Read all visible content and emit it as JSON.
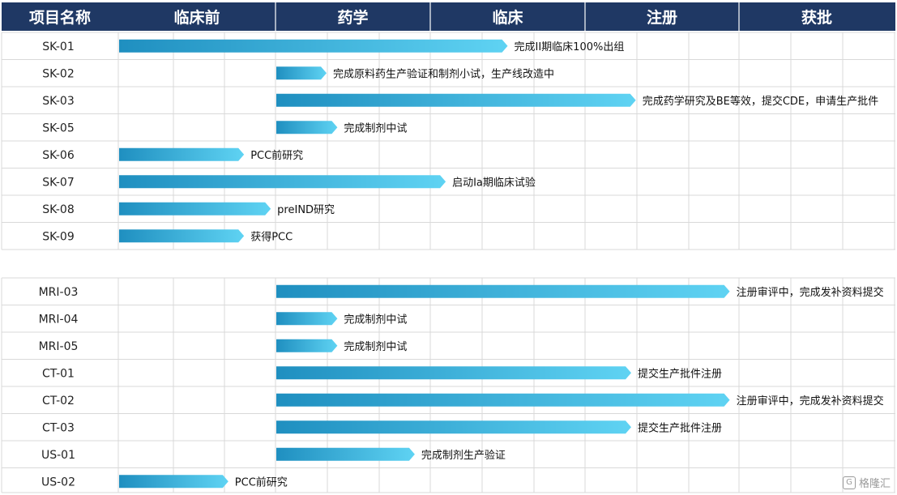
{
  "chart_data": {
    "type": "gantt",
    "header": {
      "label_column": "项目名称",
      "phases": [
        "临床前",
        "药学",
        "临床",
        "注册",
        "获批"
      ]
    },
    "groups": [
      {
        "rows": [
          {
            "name": "SK-01",
            "start_phase": 0,
            "end": 2.5,
            "note": "完成II期临床100%出组"
          },
          {
            "name": "SK-02",
            "start_phase": 1,
            "end": 1.33,
            "note": "完成原料药生产验证和制剂小试，生产线改造中"
          },
          {
            "name": "SK-03",
            "start_phase": 1,
            "end": 3.33,
            "note": "完成药学研究及BE等效，提交CDE，申请生产批件"
          },
          {
            "name": "SK-05",
            "start_phase": 1,
            "end": 1.4,
            "note": "完成制剂中试"
          },
          {
            "name": "SK-06",
            "start_phase": 0,
            "end": 0.8,
            "note": "PCC前研究"
          },
          {
            "name": "SK-07",
            "start_phase": 0,
            "end": 2.1,
            "note": "启动Ia期临床试验"
          },
          {
            "name": "SK-08",
            "start_phase": 0,
            "end": 0.97,
            "note": "preIND研究"
          },
          {
            "name": "SK-09",
            "start_phase": 0,
            "end": 0.8,
            "note": "获得PCC"
          }
        ]
      },
      {
        "rows": [
          {
            "name": "MRI-03",
            "start_phase": 1,
            "end": 3.94,
            "note": "注册审评中，完成发补资料提交"
          },
          {
            "name": "MRI-04",
            "start_phase": 1,
            "end": 1.4,
            "note": "完成制剂中试"
          },
          {
            "name": "MRI-05",
            "start_phase": 1,
            "end": 1.4,
            "note": "完成制剂中试"
          },
          {
            "name": "CT-01",
            "start_phase": 1,
            "end": 3.3,
            "note": "提交生产批件注册"
          },
          {
            "name": "CT-02",
            "start_phase": 1,
            "end": 3.94,
            "note": "注册审评中，完成发补资料提交"
          },
          {
            "name": "CT-03",
            "start_phase": 1,
            "end": 3.3,
            "note": "提交生产批件注册"
          },
          {
            "name": "US-01",
            "start_phase": 1,
            "end": 1.9,
            "note": "完成制剂生产验证"
          },
          {
            "name": "US-02",
            "start_phase": 0,
            "end": 0.7,
            "note": "PCC前研究"
          }
        ]
      }
    ],
    "colors": {
      "header_bg": "#1f3864",
      "header_text": "#ffffff",
      "bar_start": "#1f8fc0",
      "bar_end": "#5fd3f3",
      "grid": "#d9d9d9"
    }
  },
  "watermark": {
    "text": "格隆汇",
    "icon": "gelonghui-logo-icon"
  }
}
